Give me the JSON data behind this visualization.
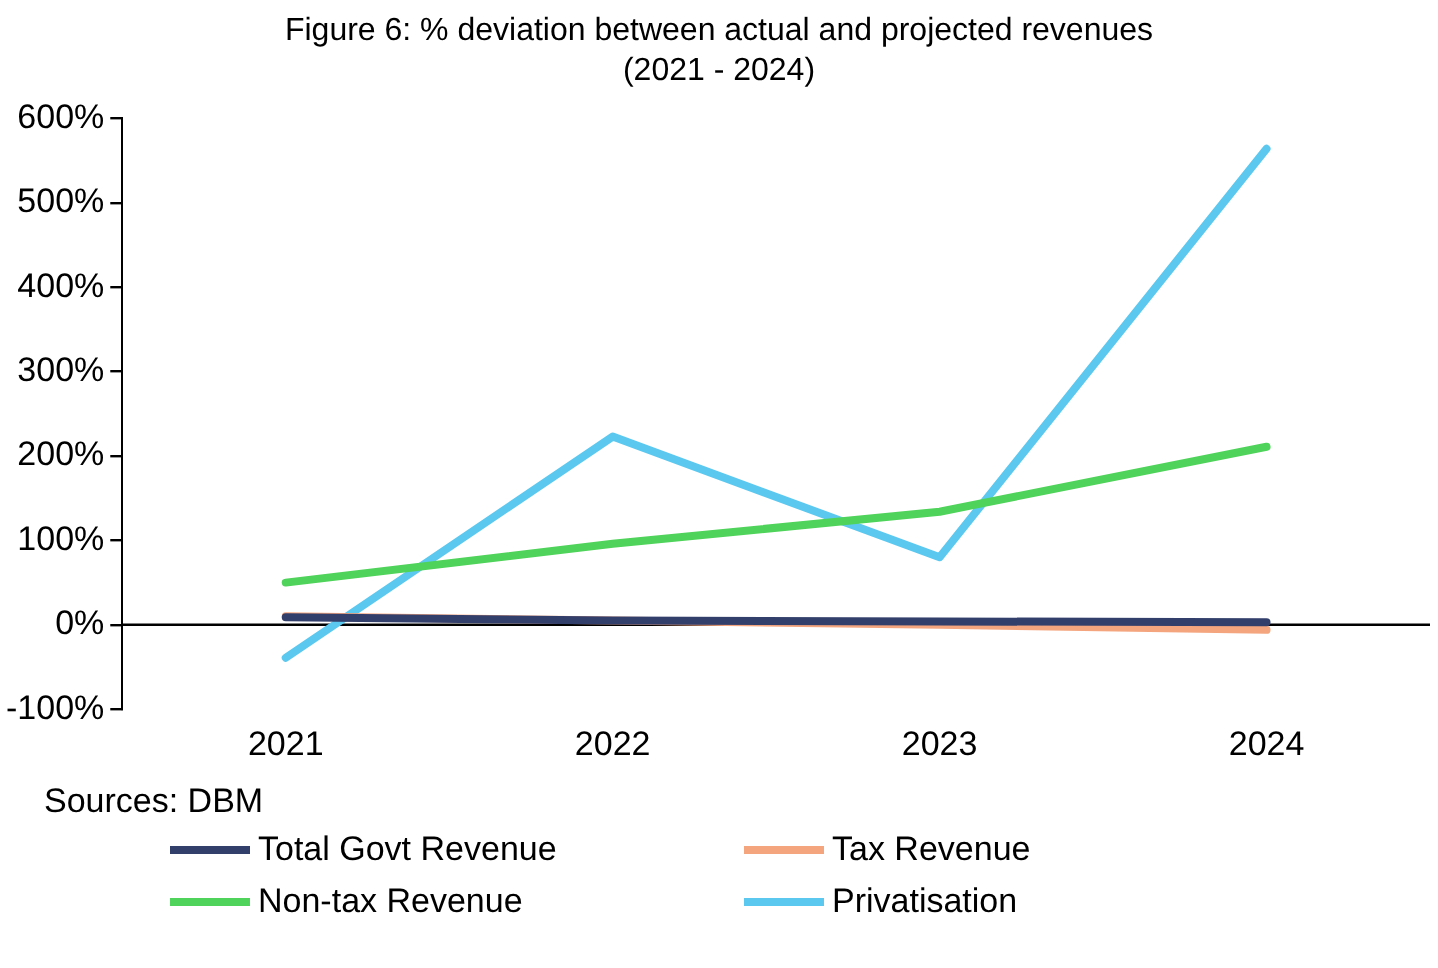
{
  "chart_data": {
    "type": "line",
    "title": "Figure 6: % deviation between actual and projected revenues (2021 - 2024)",
    "categories": [
      "2021",
      "2022",
      "2023",
      "2024"
    ],
    "series": [
      {
        "name": "Total Govt Revenue",
        "color": "#333f6b",
        "values": [
          9,
          5,
          4,
          3
        ]
      },
      {
        "name": "Tax Revenue",
        "color": "#f4a57e",
        "values": [
          10,
          5,
          0,
          -6
        ]
      },
      {
        "name": "Non-tax Revenue",
        "color": "#4fd35a",
        "values": [
          50,
          96,
          134,
          211
        ]
      },
      {
        "name": "Privatisation",
        "color": "#5bc8f0",
        "values": [
          -39,
          223,
          80,
          564
        ]
      }
    ],
    "ylim": [
      -100,
      600
    ],
    "yticks": [
      {
        "value": -100,
        "label": "-100%"
      },
      {
        "value": 0,
        "label": "0%"
      },
      {
        "value": 100,
        "label": "100%"
      },
      {
        "value": 200,
        "label": "200%"
      },
      {
        "value": 300,
        "label": "300%"
      },
      {
        "value": 400,
        "label": "400%"
      },
      {
        "value": 500,
        "label": "500%"
      },
      {
        "value": 600,
        "label": "600%"
      }
    ],
    "ref_lines": [
      {
        "axis": "y",
        "value": 0,
        "color": "#000000"
      }
    ],
    "grid": false,
    "legend": "bottom",
    "marker": "none",
    "line_style": "solid",
    "annotations": [
      "Sources: DBM"
    ]
  }
}
